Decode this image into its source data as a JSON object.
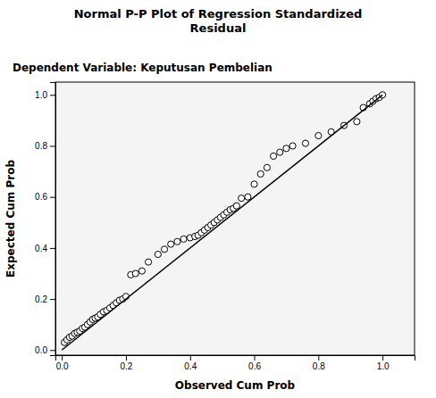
{
  "chart_data": {
    "type": "scatter",
    "title": "Normal P-P Plot of Regression Standardized\nResidual",
    "subtitle": "Dependent Variable: Keputusan Pembelian",
    "xlabel": "Observed Cum Prob",
    "ylabel": "Expected Cum Prob",
    "xlim": [
      -0.02,
      1.1
    ],
    "ylim": [
      -0.02,
      1.05
    ],
    "xticks": [
      {
        "value": 0,
        "label": "0.0"
      },
      0.2,
      0.4,
      0.6,
      0.8,
      {
        "value": 1,
        "label": "1.0"
      }
    ],
    "yticks": [
      {
        "value": 0,
        "label": "0.0"
      },
      0.2,
      0.4,
      0.6,
      0.8,
      {
        "value": 1,
        "label": "1.0"
      }
    ],
    "grid": false,
    "series": [
      {
        "type": "scatter",
        "marker": "circle",
        "color": "black",
        "x": [
          0.008,
          0.016,
          0.024,
          0.032,
          0.04,
          0.048,
          0.056,
          0.064,
          0.072,
          0.08,
          0.088,
          0.096,
          0.104,
          0.112,
          0.12,
          0.13,
          0.14,
          0.15,
          0.16,
          0.17,
          0.18,
          0.19,
          0.2,
          0.215,
          0.23,
          0.25,
          0.27,
          0.3,
          0.32,
          0.34,
          0.36,
          0.38,
          0.4,
          0.415,
          0.425,
          0.435,
          0.445,
          0.455,
          0.465,
          0.475,
          0.485,
          0.495,
          0.505,
          0.515,
          0.525,
          0.535,
          0.545,
          0.56,
          0.58,
          0.6,
          0.62,
          0.64,
          0.66,
          0.68,
          0.7,
          0.72,
          0.76,
          0.8,
          0.84,
          0.88,
          0.92,
          0.94,
          0.96,
          0.97,
          0.98,
          0.99,
          1.0
        ],
        "values": [
          0.03,
          0.04,
          0.05,
          0.055,
          0.065,
          0.07,
          0.075,
          0.085,
          0.09,
          0.1,
          0.11,
          0.12,
          0.125,
          0.13,
          0.14,
          0.15,
          0.155,
          0.165,
          0.175,
          0.185,
          0.195,
          0.2,
          0.21,
          0.295,
          0.3,
          0.31,
          0.345,
          0.375,
          0.395,
          0.415,
          0.425,
          0.435,
          0.44,
          0.445,
          0.45,
          0.46,
          0.47,
          0.48,
          0.49,
          0.5,
          0.51,
          0.52,
          0.53,
          0.54,
          0.55,
          0.555,
          0.565,
          0.595,
          0.6,
          0.65,
          0.69,
          0.715,
          0.76,
          0.775,
          0.79,
          0.8,
          0.81,
          0.84,
          0.855,
          0.88,
          0.895,
          0.95,
          0.965,
          0.975,
          0.985,
          0.99,
          1.0
        ]
      },
      {
        "type": "line",
        "line_style": "solid",
        "color": "black",
        "x": [
          0,
          1
        ],
        "values": [
          0,
          1
        ]
      }
    ]
  }
}
